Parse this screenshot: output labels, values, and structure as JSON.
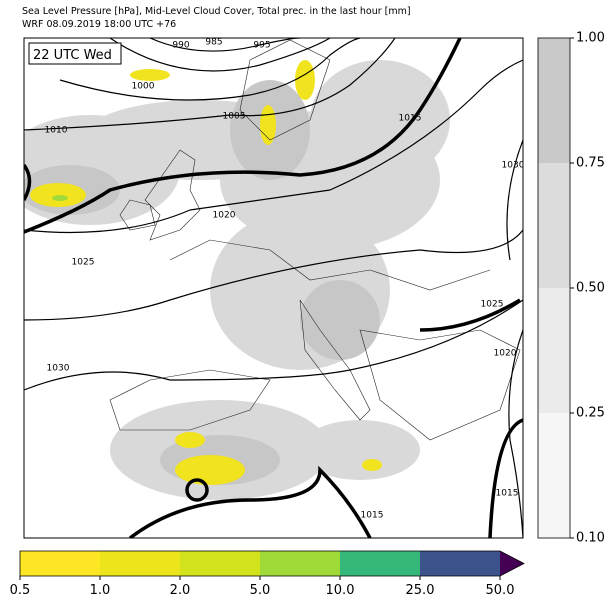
{
  "header": {
    "line1": "Sea Level Pressure [hPa], Mid-Level Cloud Cover, Total prec. in the last hour [mm]",
    "line2": "WRF 08.09.2019 18:00 UTC +76"
  },
  "map": {
    "time_label": "22 UTC Wed",
    "isobar_labels": [
      990,
      985,
      995,
      1000,
      1005,
      1010,
      1015,
      1020,
      1025,
      1030,
      1030,
      1025,
      1020,
      1015,
      1015
    ]
  },
  "cloud_colorbar": {
    "colors": [
      "#f6f6f6",
      "#ebebeb",
      "#dcdcdc",
      "#c9c9c9"
    ],
    "ticks": [
      {
        "value": 0.1,
        "label": "0.10"
      },
      {
        "value": 0.25,
        "label": "0.25"
      },
      {
        "value": 0.5,
        "label": "0.50"
      },
      {
        "value": 0.75,
        "label": "0.75"
      },
      {
        "value": 1,
        "label": "1.00"
      }
    ]
  },
  "precip_colorbar": {
    "colors": [
      "#fde725",
      "#ece51b",
      "#d2e21b",
      "#a0da39",
      "#35b779",
      "#3b528b",
      "#440154"
    ],
    "ticks": [
      0.5,
      {
        "value": 1,
        "label": "1.0"
      },
      {
        "value": 2,
        "label": "2.0"
      },
      {
        "value": 5,
        "label": "5.0"
      },
      {
        "value": 10,
        "label": "10.0"
      },
      {
        "value": 25,
        "label": "25.0"
      },
      {
        "value": 50,
        "label": "50.0"
      }
    ]
  }
}
